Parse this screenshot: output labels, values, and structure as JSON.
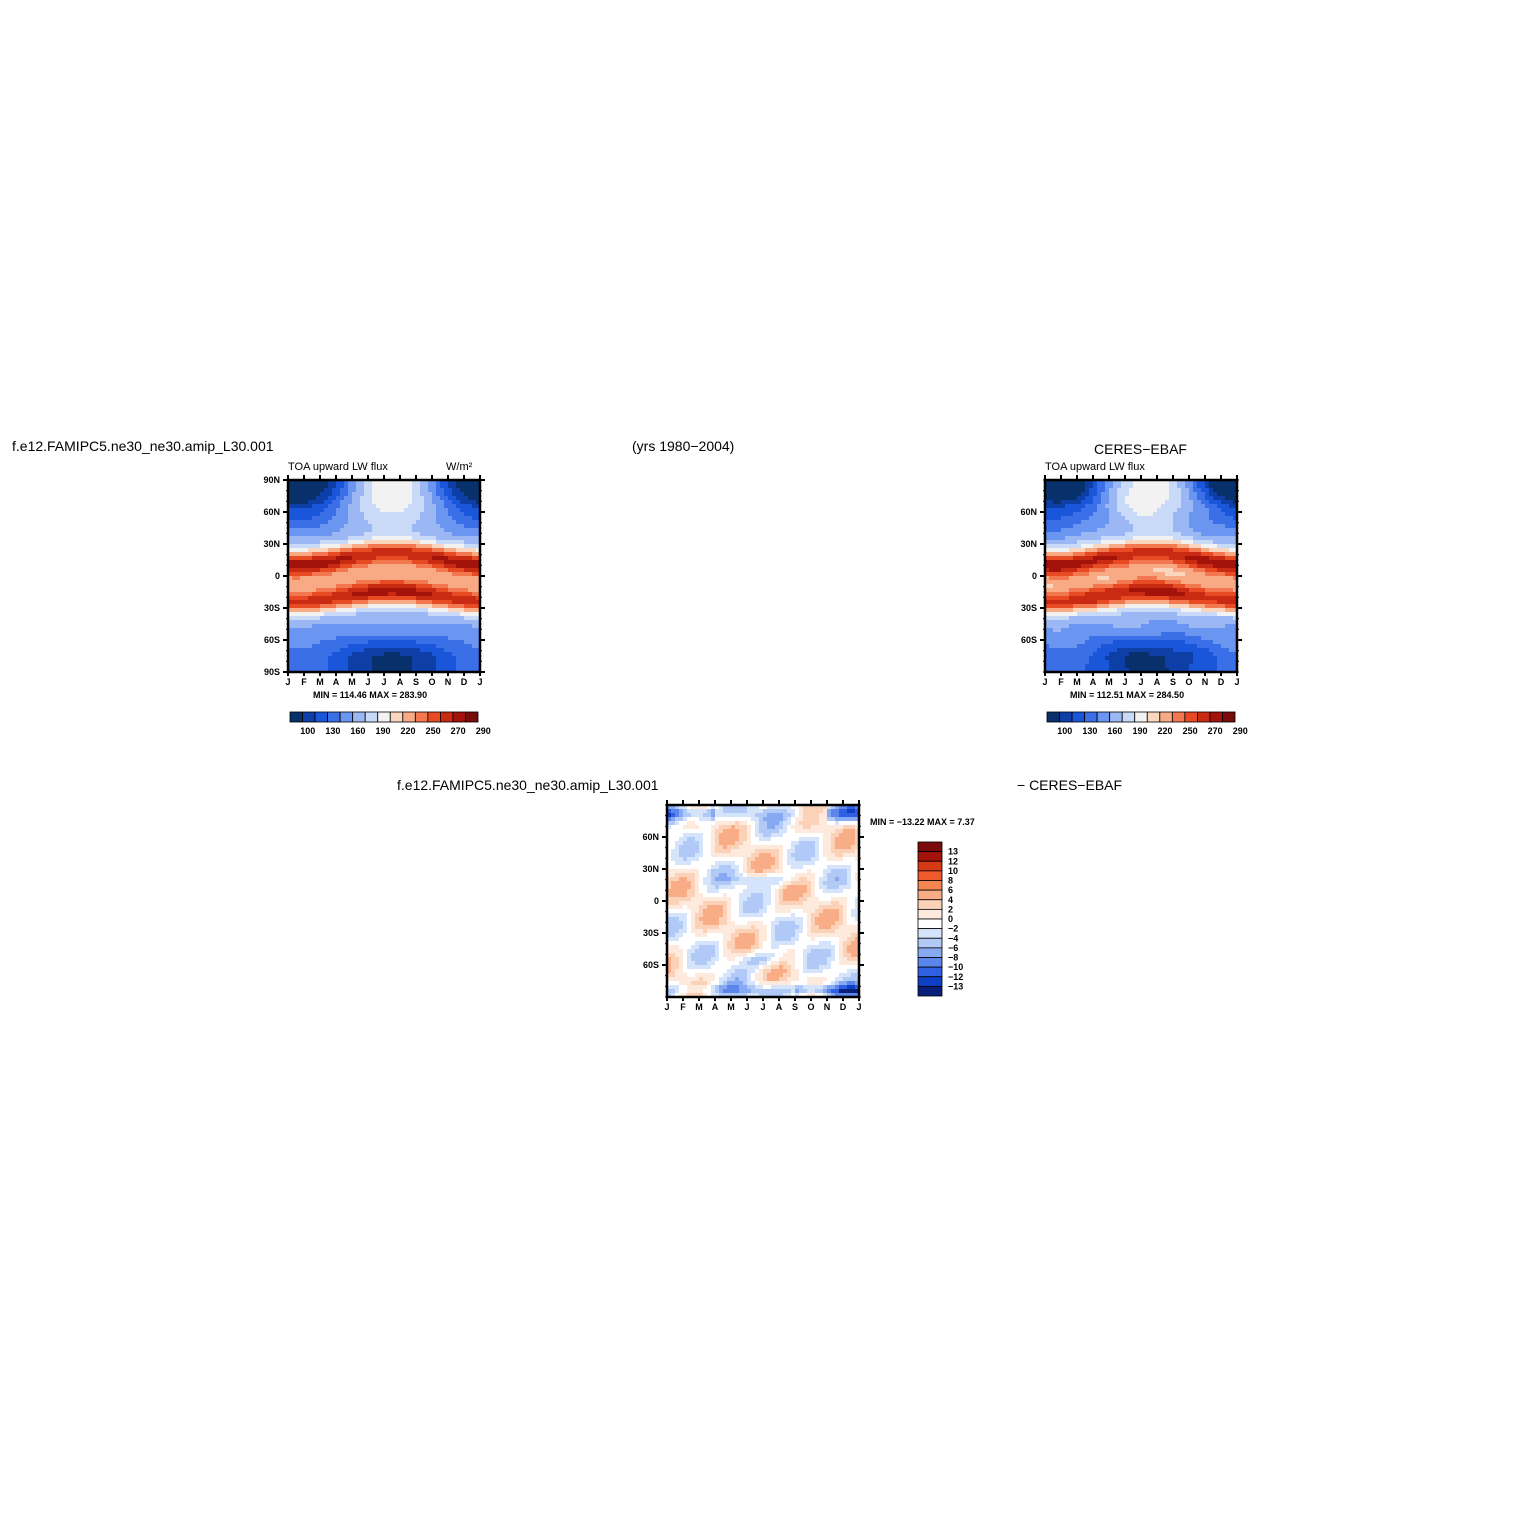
{
  "header": {
    "case_name": "f.e12.FAMIPC5.ne30_ne30.amip_L30.001",
    "years": "(yrs 1980−2004)",
    "obs_name": "CERES−EBAF"
  },
  "diff": {
    "case_name": "f.e12.FAMIPC5.ne30_ne30.amip_L30.001",
    "obs_name": "− CERES−EBAF"
  },
  "palettes": {
    "main": [
      "#08306b",
      "#0d3fa6",
      "#1a56d9",
      "#3a6fe8",
      "#6a95f0",
      "#9bb7f4",
      "#c9d9f8",
      "#f2f2f2",
      "#fbd6bf",
      "#f8aa84",
      "#f3784f",
      "#e84a24",
      "#c92b12",
      "#a3130b",
      "#7a0b0b"
    ],
    "diff_levels": [
      "13",
      "12",
      "10",
      "8",
      "6",
      "4",
      "2",
      "0",
      "−2",
      "−4",
      "−6",
      "−8",
      "−10",
      "−12",
      "−13"
    ],
    "diff": [
      "#7a0b0b",
      "#a3130b",
      "#d63a14",
      "#ee5a2a",
      "#f6864f",
      "#f9ad86",
      "#fbd2b8",
      "#fdeadc",
      "#ffffff",
      "#d6e4fb",
      "#b0c9f6",
      "#86a9f1",
      "#5a86ec",
      "#2f5fe2",
      "#0f3fc4",
      "#08207a"
    ]
  },
  "chart_data": [
    {
      "type": "heatmap",
      "panel": "model",
      "title": "TOA upward LW flux",
      "units": "W/m²",
      "x_ticks": [
        "J",
        "F",
        "M",
        "A",
        "M",
        "J",
        "J",
        "A",
        "S",
        "O",
        "N",
        "D",
        "J"
      ],
      "y_ticks": [
        "90N",
        "60N",
        "30N",
        "0",
        "30S",
        "60S",
        "90S"
      ],
      "y_range": [
        -90,
        90
      ],
      "min_max": "MIN = 114.46  MAX = 283.90",
      "colorbar_labels": [
        "100",
        "130",
        "160",
        "190",
        "220",
        "250",
        "270",
        "290"
      ]
    },
    {
      "type": "heatmap",
      "panel": "obs",
      "title": "TOA upward LW flux",
      "units": "",
      "x_ticks": [
        "J",
        "F",
        "M",
        "A",
        "M",
        "J",
        "J",
        "A",
        "S",
        "O",
        "N",
        "D",
        "J"
      ],
      "y_ticks": [
        "60N",
        "30N",
        "0",
        "30S",
        "60S"
      ],
      "y_range": [
        -90,
        90
      ],
      "min_max": "MIN = 112.51  MAX = 284.50",
      "colorbar_labels": [
        "100",
        "130",
        "160",
        "190",
        "220",
        "250",
        "270",
        "290"
      ]
    },
    {
      "type": "heatmap",
      "panel": "difference",
      "x_ticks": [
        "J",
        "F",
        "M",
        "A",
        "M",
        "J",
        "J",
        "A",
        "S",
        "O",
        "N",
        "D",
        "J"
      ],
      "y_ticks": [
        "60N",
        "30N",
        "0",
        "30S",
        "60S"
      ],
      "y_range": [
        -90,
        90
      ],
      "min_max": "MIN = −13.22  MAX =    7.37",
      "colorbar_labels": [
        "13",
        "12",
        "10",
        "8",
        "6",
        "4",
        "2",
        "0",
        "−2",
        "−4",
        "−6",
        "−8",
        "−10",
        "−12",
        "−13"
      ]
    }
  ]
}
